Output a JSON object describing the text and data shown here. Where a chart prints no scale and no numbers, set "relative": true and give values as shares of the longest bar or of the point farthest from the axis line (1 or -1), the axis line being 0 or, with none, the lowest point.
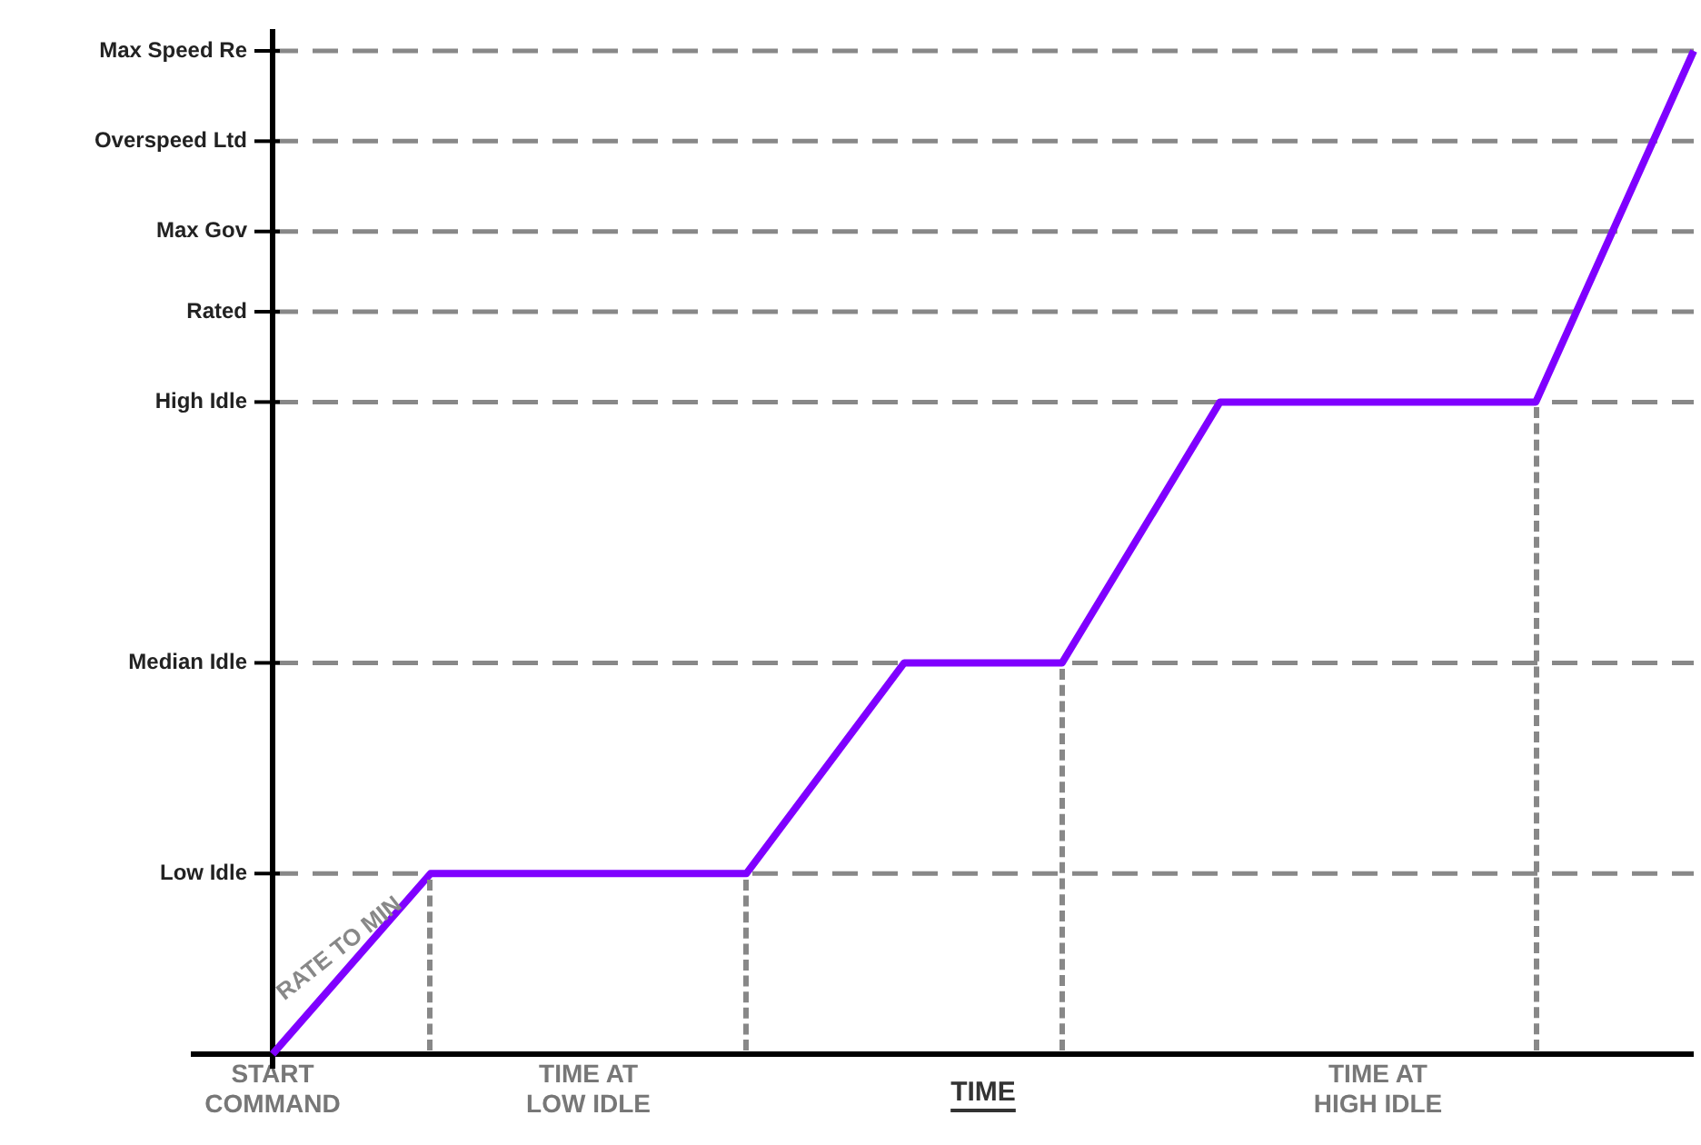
{
  "chart_data": {
    "type": "line",
    "relative": true,
    "xlabel": "TIME",
    "categories": [
      "START COMMAND",
      null,
      "TIME AT LOW IDLE",
      null,
      null,
      null,
      null,
      "TIME AT HIGH IDLE",
      null,
      null
    ],
    "series": [
      {
        "color": "#7f00ff",
        "values": [
          0,
          0.18,
          0.18,
          0.18,
          0.39,
          0.39,
          0.65,
          0.65,
          0.65,
          1.0
        ]
      }
    ],
    "ref_lines": [
      {
        "axis": "y",
        "value": 0.18,
        "label": "Low Idle",
        "color": "#888888",
        "line_style": "dashed"
      },
      {
        "axis": "y",
        "value": 0.39,
        "label": "Median Idle",
        "color": "#888888",
        "line_style": "dashed"
      },
      {
        "axis": "y",
        "value": 0.65,
        "label": "High Idle",
        "color": "#888888",
        "line_style": "dashed"
      },
      {
        "axis": "y",
        "value": 0.74,
        "label": "Rated",
        "color": "#888888",
        "line_style": "dashed"
      },
      {
        "axis": "y",
        "value": 0.82,
        "label": "Max Gov",
        "color": "#888888",
        "line_style": "dashed"
      },
      {
        "axis": "y",
        "value": 0.91,
        "label": "Overspeed Ltd",
        "color": "#888888",
        "line_style": "dashed"
      },
      {
        "axis": "y",
        "value": 1.0,
        "label": "Max Speed Re",
        "color": "#888888",
        "line_style": "dashed"
      }
    ],
    "annotations": [
      "RATE TO MIN"
    ],
    "legend": false
  }
}
